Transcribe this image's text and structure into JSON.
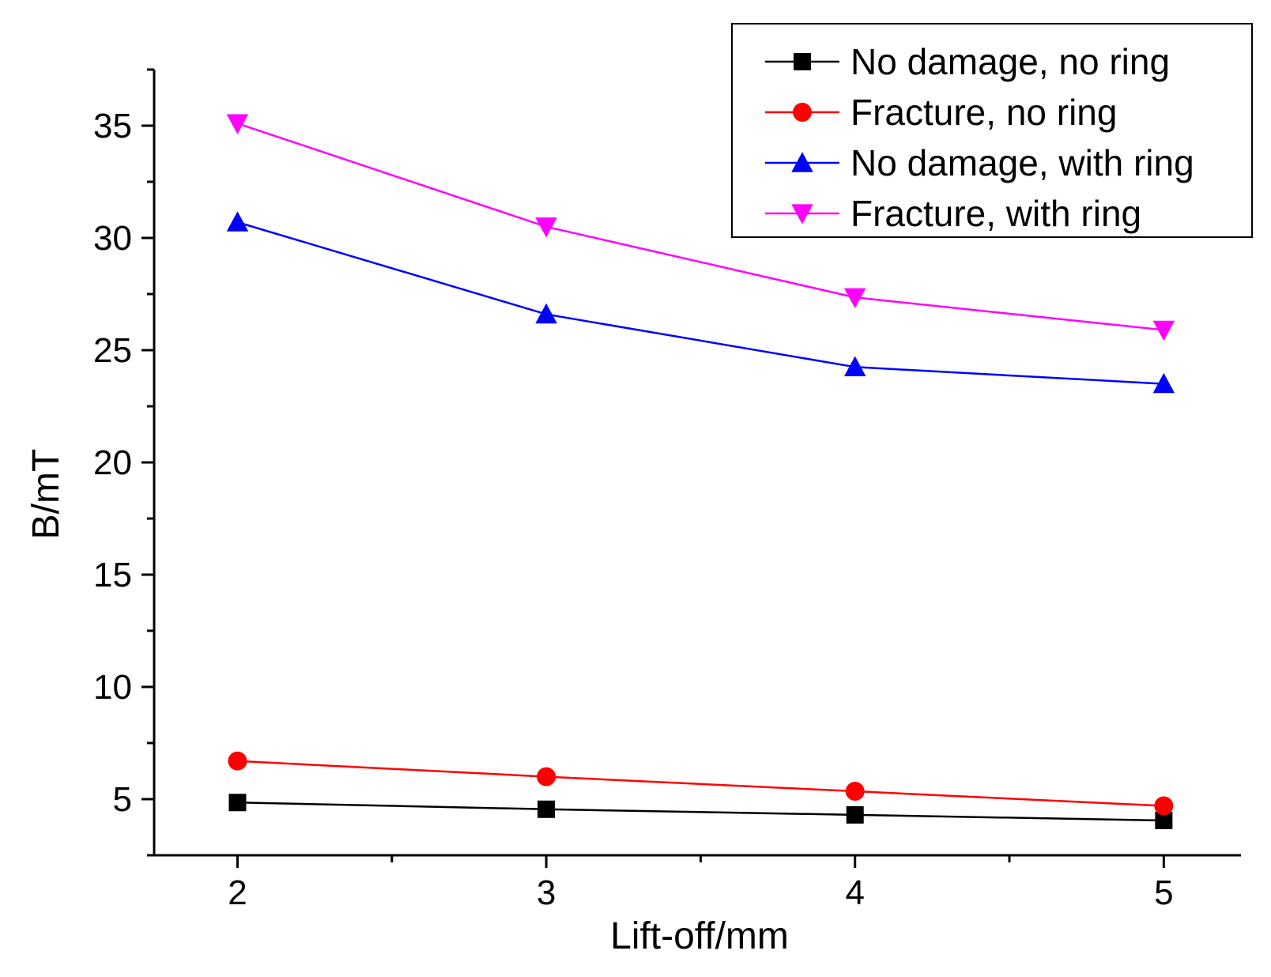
{
  "chart_data": {
    "type": "line",
    "title": "",
    "xlabel": "Lift-off/mm",
    "ylabel": "B/mT",
    "x": [
      2,
      3,
      4,
      5
    ],
    "xlim": [
      1.73,
      5.25
    ],
    "ylim": [
      2.5,
      37.5
    ],
    "xticks": [
      2,
      3,
      4,
      5
    ],
    "yticks": [
      5,
      10,
      15,
      20,
      25,
      30,
      35
    ],
    "grid": false,
    "legend_position": "top-right",
    "series": [
      {
        "name": "No damage, no ring",
        "values": [
          4.85,
          4.55,
          4.3,
          4.05
        ],
        "color": "#000000",
        "marker": "square"
      },
      {
        "name": "Fracture, no ring",
        "values": [
          6.7,
          6.0,
          5.35,
          4.7
        ],
        "color": "#ff0000",
        "marker": "circle"
      },
      {
        "name": "No damage, with ring",
        "values": [
          30.7,
          26.6,
          24.25,
          23.5
        ],
        "color": "#0000ff",
        "marker": "triangle-up"
      },
      {
        "name": "Fracture, with ring",
        "values": [
          35.1,
          30.5,
          27.35,
          25.9
        ],
        "color": "#ff00ff",
        "marker": "triangle-down"
      }
    ]
  }
}
